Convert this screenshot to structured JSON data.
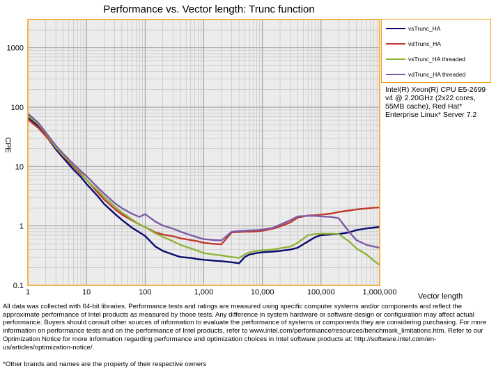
{
  "chart_data": {
    "type": "line",
    "title": "Performance vs. Vector length: Trunc function",
    "xlabel": "Vector length",
    "ylabel": "CPE",
    "xscale": "log",
    "yscale": "log",
    "xlim": [
      1,
      1000000
    ],
    "ylim": [
      0.1,
      3000
    ],
    "x_ticks": [
      1,
      10,
      100,
      1000,
      10000,
      100000,
      1000000
    ],
    "x_tick_labels": [
      "1",
      "10",
      "100",
      "1,000",
      "10,000",
      "100,000",
      "1,000,000"
    ],
    "y_ticks": [
      0.1,
      1,
      10,
      100,
      1000
    ],
    "y_tick_labels": [
      "0.1",
      "1",
      "10",
      "100",
      "1000"
    ],
    "grid": true,
    "legend_position": "top-right outside plot",
    "x": [
      1,
      1.5,
      2,
      3,
      4,
      6,
      8,
      10,
      15,
      20,
      30,
      40,
      60,
      80,
      100,
      150,
      200,
      300,
      400,
      600,
      800,
      1000,
      1500,
      2000,
      3000,
      4000,
      5000,
      6000,
      8000,
      10000,
      15000,
      20000,
      30000,
      40000,
      60000,
      80000,
      100000,
      150000,
      200000,
      300000,
      400000,
      600000,
      800000,
      1000000
    ],
    "series": [
      {
        "name": "vsTrunc_HA",
        "color": "#0A0A6E",
        "values": [
          68,
          48,
          34,
          19.5,
          14,
          8.9,
          6.7,
          5.1,
          3.3,
          2.35,
          1.62,
          1.27,
          0.93,
          0.78,
          0.68,
          0.45,
          0.38,
          0.33,
          0.3,
          0.29,
          0.275,
          0.27,
          0.26,
          0.255,
          0.245,
          0.235,
          0.3,
          0.33,
          0.35,
          0.36,
          0.37,
          0.38,
          0.4,
          0.43,
          0.55,
          0.65,
          0.7,
          0.72,
          0.73,
          0.78,
          0.85,
          0.91,
          0.94,
          0.96
        ]
      },
      {
        "name": "vdTrunc_HA",
        "color": "#C0392B",
        "values": [
          62,
          45,
          33,
          21,
          15,
          10,
          7.5,
          6.0,
          3.8,
          2.8,
          1.95,
          1.56,
          1.24,
          1.06,
          0.96,
          0.78,
          0.72,
          0.67,
          0.62,
          0.58,
          0.55,
          0.52,
          0.5,
          0.49,
          0.78,
          0.79,
          0.8,
          0.8,
          0.81,
          0.83,
          0.9,
          0.98,
          1.15,
          1.38,
          1.5,
          1.52,
          1.55,
          1.62,
          1.72,
          1.82,
          1.9,
          1.98,
          2.03,
          2.05
        ]
      },
      {
        "name": "vsTrunc_HA threaded",
        "color": "#8FB43A",
        "values": [
          72,
          52,
          37,
          21,
          15.5,
          10.5,
          7.9,
          5.9,
          4.1,
          3.1,
          2.15,
          1.7,
          1.28,
          1.06,
          0.96,
          0.75,
          0.66,
          0.55,
          0.48,
          0.42,
          0.38,
          0.35,
          0.33,
          0.32,
          0.3,
          0.29,
          0.33,
          0.36,
          0.38,
          0.39,
          0.4,
          0.42,
          0.45,
          0.52,
          0.7,
          0.73,
          0.74,
          0.74,
          0.73,
          0.55,
          0.42,
          0.33,
          0.26,
          0.22
        ]
      },
      {
        "name": "vdTrunc_HA threaded",
        "color": "#7D5BA6",
        "values": [
          78,
          55,
          38,
          22.5,
          16.5,
          11.0,
          8.4,
          6.9,
          4.6,
          3.5,
          2.45,
          2.0,
          1.6,
          1.42,
          1.58,
          1.18,
          1.02,
          0.9,
          0.8,
          0.7,
          0.64,
          0.6,
          0.58,
          0.57,
          0.8,
          0.82,
          0.83,
          0.84,
          0.85,
          0.87,
          0.93,
          1.05,
          1.25,
          1.45,
          1.48,
          1.48,
          1.45,
          1.42,
          1.35,
          0.8,
          0.58,
          0.48,
          0.45,
          0.43
        ]
      }
    ]
  },
  "cpu_note": "Intel(R) Xeon(R) CPU E5-2699 v4 @ 2.20GHz (2x22 cores, 55MB cache), Red Hat* Enterprise Linux* Server 7.2",
  "footnote": "All data was collected with 64-bit libraries. Performance tests and ratings are measured using specific computer systems and/or components and reflect the approximate performance of Intel products as measured by those tests. Any difference in system hardware or software design or configuration may affect actual performance. Buyers should consult other sources of information to evaluate the performance of systems or components they are considering purchasing. For more information on performance tests and on the performance of Intel products, refer to www.intel.com/performance/resources/benchmark_limitations.htm. Refer to our Optimization Notice for more information regarding performance and optimization choices in Intel software products at: http://software.intel.com/en-us/articles/optimization-notice/.",
  "other_brands": "*Other brands and names are the property of their respective owners"
}
